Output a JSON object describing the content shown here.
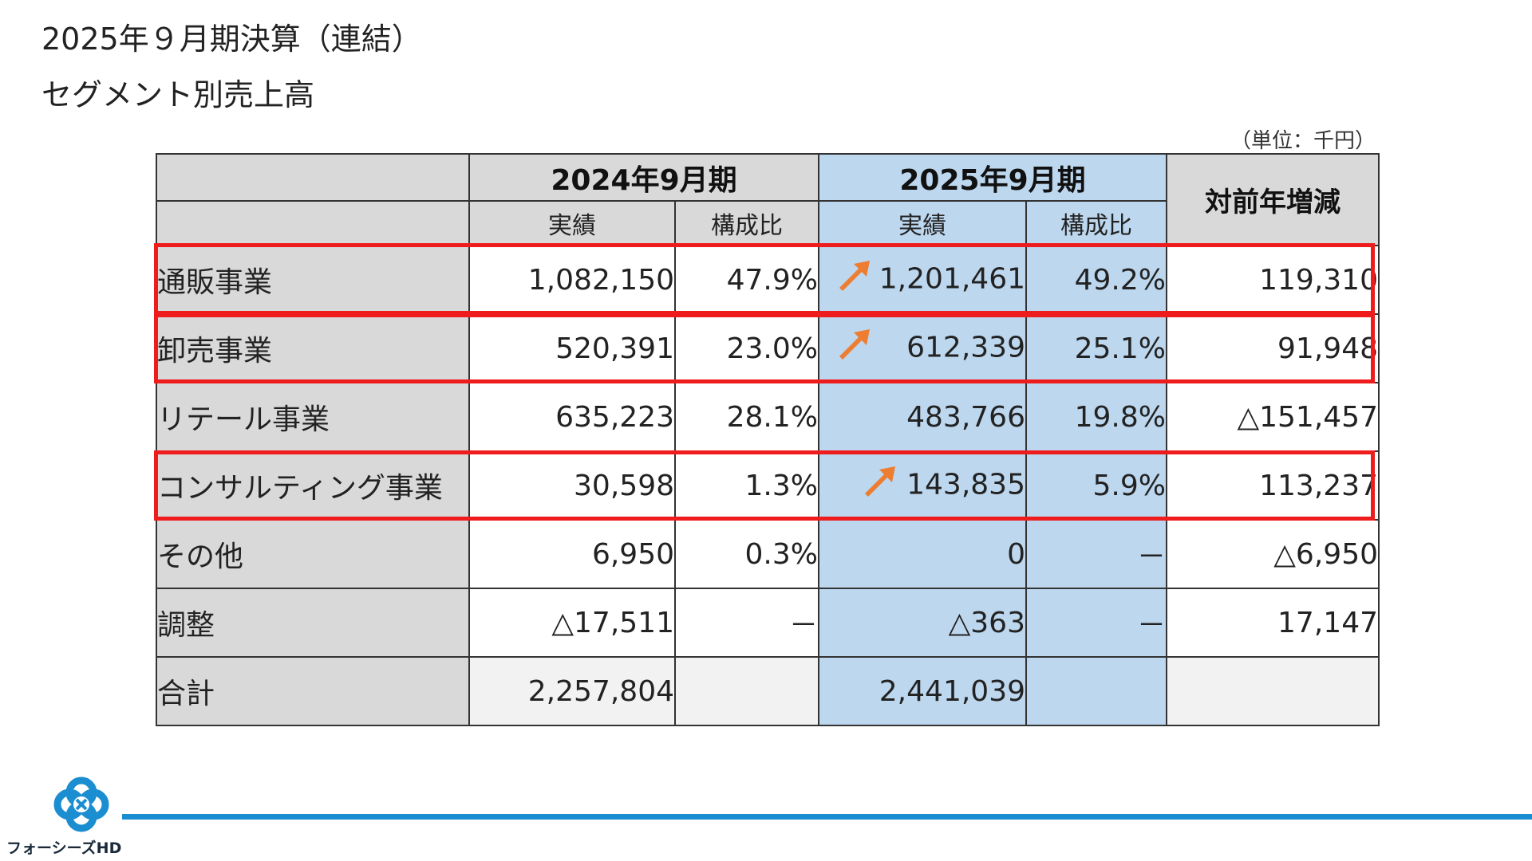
{
  "title": "2025年９月期決算（連結）",
  "subtitle": "セグメント別売上高",
  "unit_note": "（単位：千円）",
  "colors": {
    "header_gray": "#d9d9d9",
    "current_period_blue": "#bdd7ee",
    "highlight_red": "#ee1c1c",
    "arrow_orange": "#ed7d31",
    "footer_line_blue": "#1a8ed0"
  },
  "table": {
    "period_prev": "2024年9月期",
    "period_curr": "2025年9月期",
    "yoy_header": "対前年増減",
    "col_actual": "実績",
    "col_ratio": "構成比",
    "rows": [
      {
        "segment": "通販事業",
        "prev_actual": "1,082,150",
        "prev_ratio": "47.9%",
        "curr_actual": "1,201,461",
        "curr_ratio": "49.2%",
        "yoy": "119,310",
        "arrow_icon": "up-right-arrow-icon",
        "highlighted": true
      },
      {
        "segment": "卸売事業",
        "prev_actual": "520,391",
        "prev_ratio": "23.0%",
        "curr_actual": "612,339",
        "curr_ratio": "25.1%",
        "yoy": "91,948",
        "arrow_icon": "up-right-arrow-icon",
        "highlighted": true
      },
      {
        "segment": "リテール事業",
        "prev_actual": "635,223",
        "prev_ratio": "28.1%",
        "curr_actual": "483,766",
        "curr_ratio": "19.8%",
        "yoy": "△151,457",
        "highlighted": false
      },
      {
        "segment": "コンサルティング事業",
        "prev_actual": "30,598",
        "prev_ratio": "1.3%",
        "curr_actual": "143,835",
        "curr_ratio": "5.9%",
        "yoy": "113,237",
        "arrow_icon": "up-right-arrow-icon",
        "highlighted": true
      },
      {
        "segment": "その他",
        "prev_actual": "6,950",
        "prev_ratio": "0.3%",
        "curr_actual": "0",
        "curr_ratio": "－",
        "yoy": "△6,950",
        "highlighted": false
      },
      {
        "segment": "調整",
        "prev_actual": "△17,511",
        "prev_ratio": "－",
        "curr_actual": "△363",
        "curr_ratio": "－",
        "yoy": "17,147",
        "highlighted": false
      },
      {
        "segment": "合計",
        "prev_actual": "2,257,804",
        "prev_ratio": "",
        "curr_actual": "2,441,039",
        "curr_ratio": "",
        "yoy": "",
        "highlighted": false
      }
    ]
  },
  "footer": {
    "company_name": "フォーシーズHD",
    "logo_icon": "four-leaf-clover-logo-icon"
  }
}
